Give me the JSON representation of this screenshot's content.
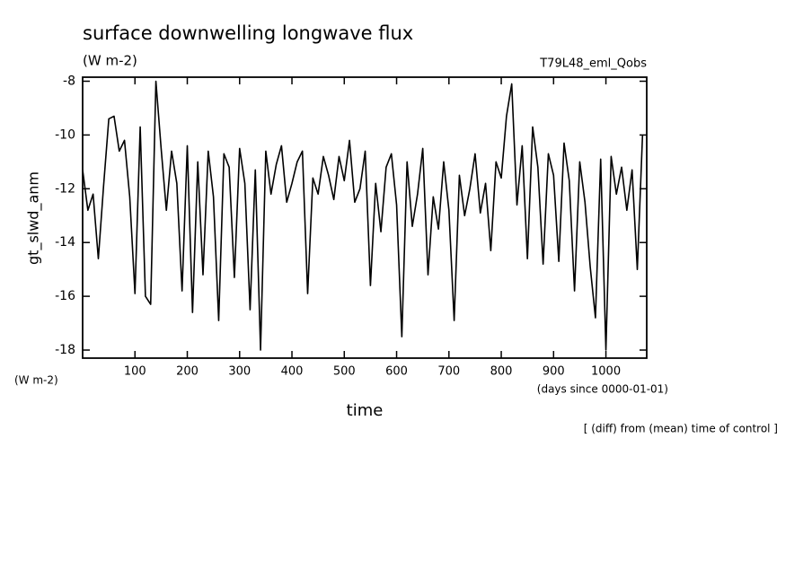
{
  "chart_data": {
    "type": "line",
    "title": "surface downwelling longwave flux",
    "subtitle": "(W m-2)",
    "run_label": "T79L48_eml_Qobs",
    "ylabel": "gt_slwd_anm",
    "yunit": "(W m-2)",
    "xunit": "(days since 0000-01-01)",
    "xlabel": "time",
    "note": "[ (diff) from (mean) time of control ]",
    "x": [
      0,
      10,
      20,
      30,
      40,
      50,
      60,
      70,
      80,
      90,
      100,
      110,
      120,
      130,
      140,
      150,
      160,
      170,
      180,
      190,
      200,
      210,
      220,
      230,
      240,
      250,
      260,
      270,
      280,
      290,
      300,
      310,
      320,
      330,
      340,
      350,
      360,
      370,
      380,
      390,
      400,
      410,
      420,
      430,
      440,
      450,
      460,
      470,
      480,
      490,
      500,
      510,
      520,
      530,
      540,
      550,
      560,
      570,
      580,
      590,
      600,
      610,
      620,
      630,
      640,
      650,
      660,
      670,
      680,
      690,
      700,
      710,
      720,
      730,
      740,
      750,
      760,
      770,
      780,
      790,
      800,
      810,
      820,
      830,
      840,
      850,
      860,
      870,
      880,
      890,
      900,
      910,
      920,
      930,
      940,
      950,
      960,
      970,
      980,
      990,
      1000,
      1010,
      1020,
      1030,
      1040,
      1050,
      1060,
      1070
    ],
    "series": [
      {
        "color": "#000000",
        "values": [
          -11.3,
          -12.8,
          -12.2,
          -14.6,
          -11.9,
          -9.4,
          -9.3,
          -10.6,
          -10.2,
          -12.3,
          -15.9,
          -9.7,
          -16.0,
          -16.3,
          -8.0,
          -10.5,
          -12.8,
          -10.6,
          -11.8,
          -15.8,
          -10.4,
          -16.6,
          -11.0,
          -15.2,
          -10.6,
          -12.3,
          -16.9,
          -10.7,
          -11.2,
          -15.3,
          -10.5,
          -11.8,
          -16.5,
          -11.3,
          -18.0,
          -10.6,
          -12.2,
          -11.1,
          -10.4,
          -12.5,
          -11.8,
          -11.0,
          -10.6,
          -15.9,
          -11.6,
          -12.2,
          -10.8,
          -11.5,
          -12.4,
          -10.8,
          -11.7,
          -10.2,
          -12.5,
          -12.0,
          -10.6,
          -15.6,
          -11.8,
          -13.6,
          -11.2,
          -10.7,
          -12.6,
          -17.5,
          -11.0,
          -13.4,
          -12.2,
          -10.5,
          -15.2,
          -12.3,
          -13.5,
          -11.0,
          -12.8,
          -16.9,
          -11.5,
          -13.0,
          -12.0,
          -10.7,
          -12.9,
          -11.8,
          -14.3,
          -11.0,
          -11.6,
          -9.3,
          -8.1,
          -12.6,
          -10.4,
          -14.6,
          -9.7,
          -11.2,
          -14.8,
          -10.7,
          -11.5,
          -14.7,
          -10.3,
          -11.7,
          -15.8,
          -11.0,
          -12.5,
          -14.9,
          -16.8,
          -10.9,
          -18.0,
          -10.8,
          -12.2,
          -11.2,
          -12.8,
          -11.3,
          -15.0,
          -10.0
        ]
      }
    ],
    "xlim": [
      0,
      1078
    ],
    "ylim": [
      -18.3,
      -7.85
    ],
    "xticks": [
      100,
      200,
      300,
      400,
      500,
      600,
      700,
      800,
      900,
      1000
    ],
    "yticks": [
      -18,
      -16,
      -14,
      -12,
      -10,
      -8
    ]
  }
}
